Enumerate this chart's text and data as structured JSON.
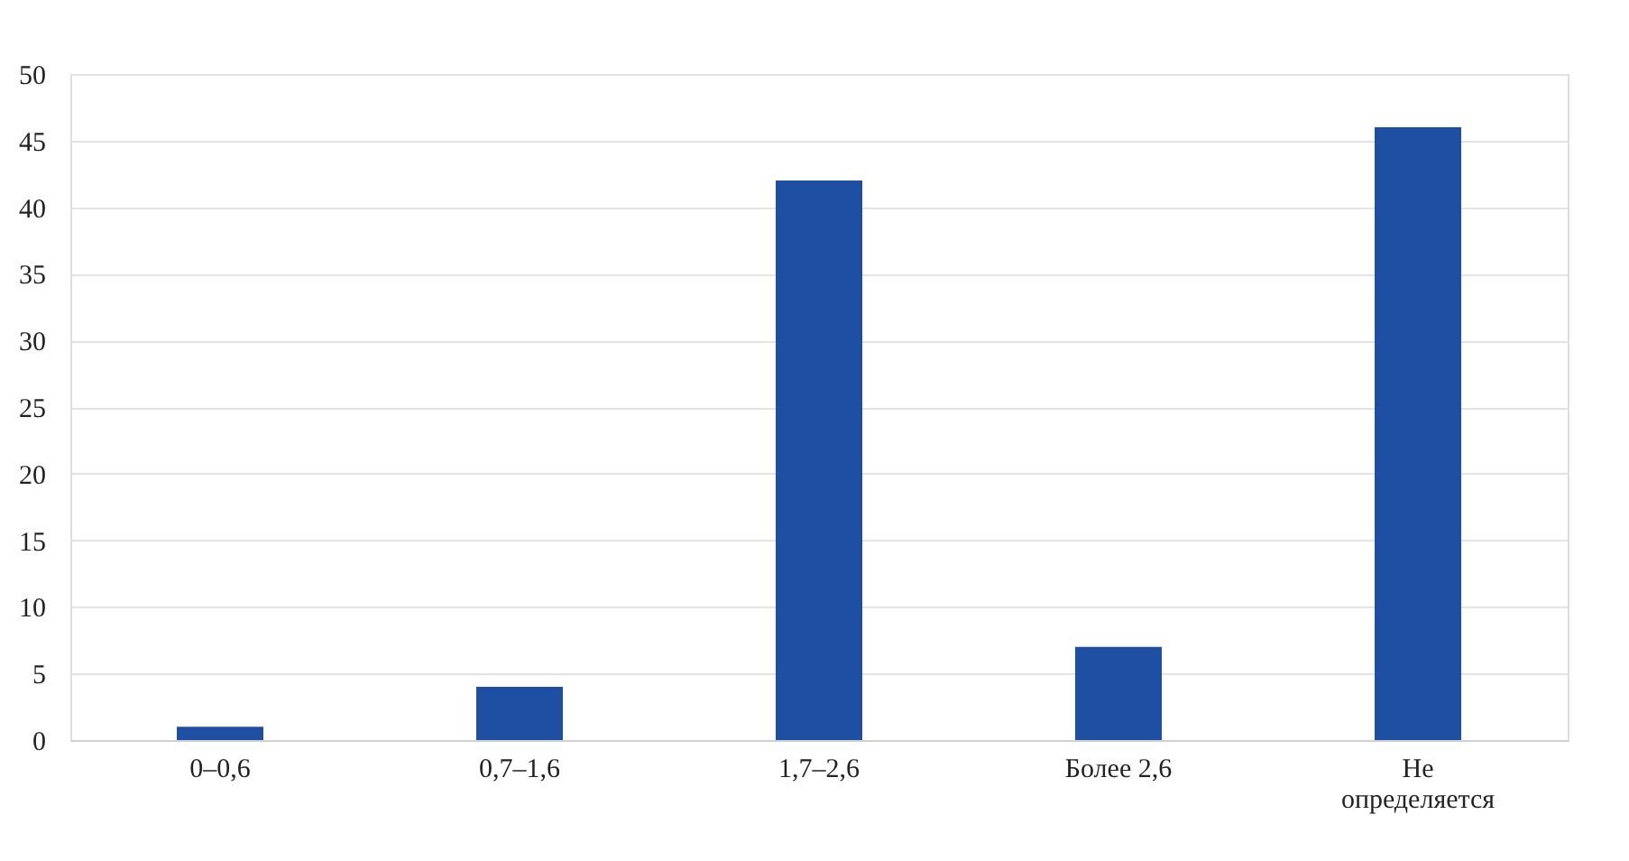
{
  "chart_data": {
    "type": "bar",
    "categories": [
      "0–0,6",
      "0,7–1,6",
      "1,7–2,6",
      "Более 2,6",
      "Не определяется"
    ],
    "values": [
      1,
      4,
      42,
      7,
      46
    ],
    "color": "#1e4fa3",
    "ylim": [
      0,
      50
    ],
    "yticks": [
      0,
      5,
      10,
      15,
      20,
      25,
      30,
      35,
      40,
      45,
      50
    ],
    "grid": "y"
  }
}
